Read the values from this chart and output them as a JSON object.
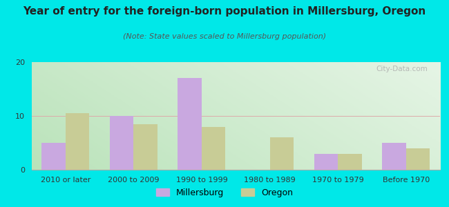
{
  "title": "Year of entry for the foreign-born population in Millersburg, Oregon",
  "subtitle": "(Note: State values scaled to Millersburg population)",
  "categories": [
    "2010 or later",
    "2000 to 2009",
    "1990 to 1999",
    "1980 to 1989",
    "1970 to 1979",
    "Before 1970"
  ],
  "millersburg": [
    5,
    10,
    17,
    0,
    3,
    5
  ],
  "oregon": [
    10.5,
    8.5,
    8,
    6,
    3,
    4
  ],
  "millersburg_color": "#c9a8e0",
  "oregon_color": "#c8cc96",
  "background_outer": "#00e8e8",
  "ylim": [
    0,
    20
  ],
  "yticks": [
    0,
    10,
    20
  ],
  "bar_width": 0.35,
  "title_fontsize": 11,
  "subtitle_fontsize": 8,
  "tick_fontsize": 8,
  "legend_fontsize": 9,
  "watermark": "City-Data.com",
  "grid_color": "#dddddd",
  "title_color": "#222222",
  "subtitle_color": "#555555"
}
